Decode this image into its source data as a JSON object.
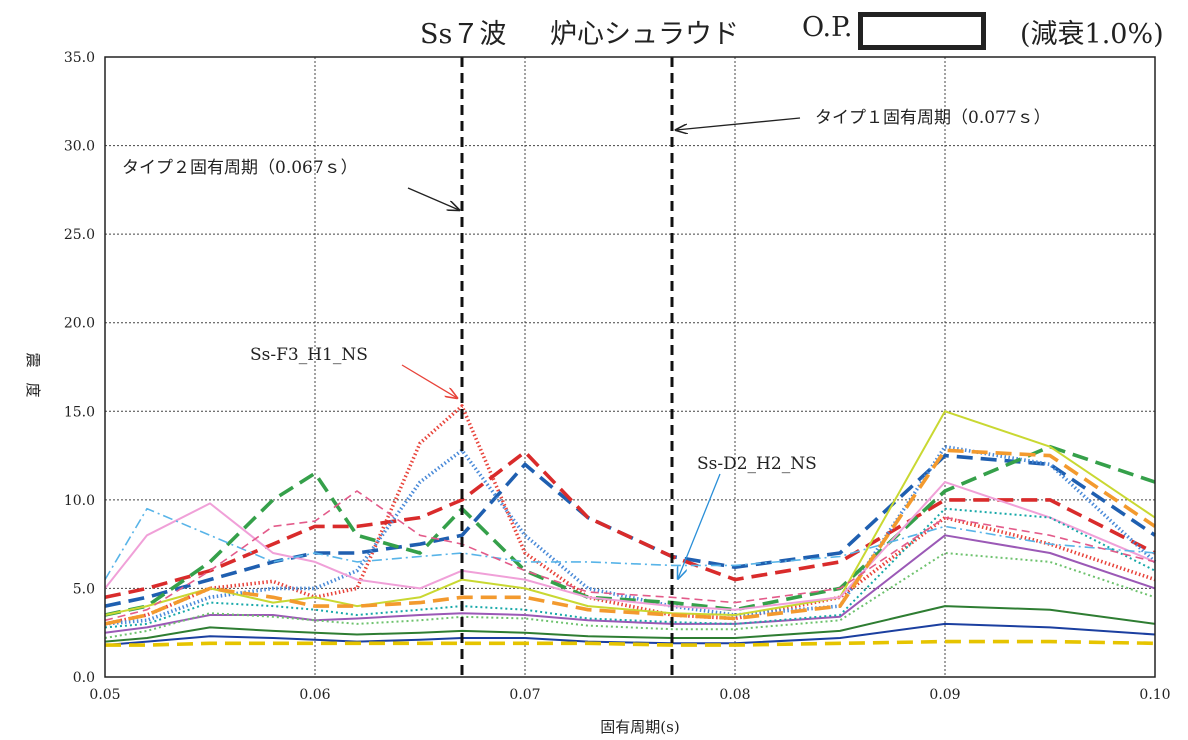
{
  "header": {
    "waves": "Ss７波",
    "location": "炉心シュラウド",
    "op_label": "O.P.",
    "damping": "(減衰1.0%)"
  },
  "chart_data": {
    "type": "line",
    "title": "Ss７波　炉心シュラウド　O.P.　(減衰1.0%)",
    "xlabel": "固有周期(s)",
    "ylabel": "震　度",
    "xlim": [
      0.05,
      0.1
    ],
    "ylim": [
      0.0,
      35.0
    ],
    "x_ticks": [
      "0.05",
      "0.06",
      "0.07",
      "0.08",
      "0.09",
      "0.10"
    ],
    "y_ticks": [
      "0.0",
      "5.0",
      "10.0",
      "15.0",
      "20.0",
      "25.0",
      "30.0",
      "35.0"
    ],
    "grid": true,
    "x": [
      0.05,
      0.052,
      0.055,
      0.058,
      0.06,
      0.062,
      0.065,
      0.067,
      0.07,
      0.073,
      0.077,
      0.08,
      0.085,
      0.09,
      0.095,
      0.1
    ],
    "series": [
      {
        "name": "Ss-F3_H1_NS",
        "color": "#e8433a",
        "style": "dotted-thick",
        "values": [
          3.0,
          3.5,
          5.0,
          5.4,
          4.5,
          5.0,
          13.2,
          15.3,
          7.0,
          4.5,
          3.5,
          3.3,
          4.5,
          9.0,
          7.5,
          5.5
        ]
      },
      {
        "name": "Ss-D2_H2_NS",
        "color": "#1f5fb0",
        "style": "dashed-thick",
        "values": [
          4.0,
          4.5,
          5.5,
          6.5,
          7.0,
          7.0,
          7.5,
          8.0,
          12.0,
          9.0,
          6.8,
          6.2,
          7.0,
          12.5,
          12.0,
          8.0
        ]
      },
      {
        "name": "",
        "color": "#d92b2b",
        "style": "dashed-thick",
        "values": [
          4.5,
          5.0,
          6.0,
          7.5,
          8.5,
          8.5,
          9.0,
          10.0,
          12.7,
          9.0,
          6.8,
          5.5,
          6.5,
          10.0,
          10.0,
          7.0
        ]
      },
      {
        "name": "",
        "color": "#4a8ad8",
        "style": "dotted-thick",
        "values": [
          3.0,
          3.2,
          4.5,
          5.0,
          5.0,
          6.0,
          11.0,
          12.8,
          8.0,
          5.0,
          4.0,
          3.5,
          4.0,
          13.0,
          12.0,
          6.5
        ]
      },
      {
        "name": "",
        "color": "#35a04a",
        "style": "dashed-thick",
        "values": [
          3.5,
          4.0,
          6.5,
          10.0,
          11.5,
          8.0,
          7.0,
          9.5,
          6.0,
          4.5,
          4.2,
          3.8,
          5.0,
          10.5,
          13.0,
          11.0
        ]
      },
      {
        "name": "",
        "color": "#c9d832",
        "style": "solid",
        "values": [
          3.5,
          4.0,
          5.0,
          4.2,
          4.5,
          4.0,
          4.5,
          5.5,
          5.0,
          4.0,
          3.6,
          3.5,
          4.5,
          15.0,
          13.0,
          9.0
        ]
      },
      {
        "name": "",
        "color": "#f0a0d8",
        "style": "solid",
        "values": [
          5.0,
          8.0,
          9.8,
          7.0,
          6.5,
          5.5,
          5.0,
          6.0,
          5.5,
          4.5,
          4.0,
          3.8,
          4.5,
          11.0,
          9.0,
          6.5
        ]
      },
      {
        "name": "",
        "color": "#58b4e8",
        "style": "dashdot",
        "values": [
          5.5,
          9.5,
          8.0,
          6.5,
          7.0,
          6.5,
          6.8,
          7.0,
          6.5,
          6.5,
          6.3,
          6.3,
          6.8,
          8.5,
          7.5,
          7.0
        ]
      },
      {
        "name": "",
        "color": "#f39a2e",
        "style": "dashed-thick",
        "values": [
          3.0,
          3.5,
          5.0,
          4.5,
          4.0,
          4.0,
          4.2,
          4.5,
          4.5,
          3.8,
          3.5,
          3.3,
          4.0,
          12.8,
          12.5,
          8.5
        ]
      },
      {
        "name": "",
        "color": "#9b59b6",
        "style": "solid",
        "values": [
          2.5,
          2.8,
          3.5,
          3.5,
          3.2,
          3.3,
          3.5,
          3.6,
          3.5,
          3.2,
          3.0,
          3.0,
          3.4,
          8.0,
          7.0,
          5.0
        ]
      },
      {
        "name": "",
        "color": "#16a8a8",
        "style": "dotted",
        "values": [
          2.8,
          3.0,
          4.2,
          4.0,
          3.8,
          3.5,
          3.8,
          4.0,
          3.8,
          3.3,
          3.1,
          3.0,
          3.5,
          9.5,
          9.0,
          6.0
        ]
      },
      {
        "name": "",
        "color": "#2e7d32",
        "style": "solid",
        "values": [
          2.0,
          2.2,
          2.8,
          2.6,
          2.5,
          2.4,
          2.5,
          2.6,
          2.5,
          2.3,
          2.2,
          2.2,
          2.6,
          4.0,
          3.8,
          3.0
        ]
      },
      {
        "name": "",
        "color": "#e35b8a",
        "style": "dashed",
        "values": [
          3.2,
          3.8,
          6.0,
          8.5,
          8.8,
          10.5,
          8.0,
          7.5,
          6.0,
          4.8,
          4.5,
          4.2,
          5.0,
          9.0,
          8.0,
          6.5
        ]
      },
      {
        "name": "",
        "color": "#1b3fa0",
        "style": "solid",
        "values": [
          1.8,
          2.0,
          2.3,
          2.2,
          2.1,
          2.0,
          2.1,
          2.2,
          2.2,
          2.0,
          1.9,
          1.9,
          2.2,
          3.0,
          2.8,
          2.4
        ]
      },
      {
        "name": "",
        "color": "#e6c400",
        "style": "dashed-thick",
        "values": [
          1.8,
          1.8,
          1.9,
          1.9,
          1.9,
          1.9,
          1.9,
          1.9,
          1.9,
          1.9,
          1.8,
          1.8,
          1.9,
          2.0,
          2.0,
          1.9
        ]
      },
      {
        "name": "",
        "color": "#6ec26e",
        "style": "dotted",
        "values": [
          2.2,
          2.6,
          3.6,
          3.4,
          3.2,
          3.0,
          3.2,
          3.4,
          3.3,
          2.9,
          2.7,
          2.7,
          3.2,
          7.0,
          6.5,
          4.5
        ]
      }
    ],
    "annotations": [
      {
        "text": "タイプ１固有周期（0.077ｓ）",
        "x": 0.077
      },
      {
        "text": "タイプ２固有周期（0.067ｓ）",
        "x": 0.067
      },
      {
        "text": "Ss-F3_H1_NS",
        "x": 0.067,
        "y": 15.3
      },
      {
        "text": "Ss-D2_H2_NS",
        "x": 0.077,
        "y": 6.8
      }
    ],
    "colors": {
      "grid": "#444444",
      "marker_lines": "#111111",
      "text": "#222222"
    }
  }
}
